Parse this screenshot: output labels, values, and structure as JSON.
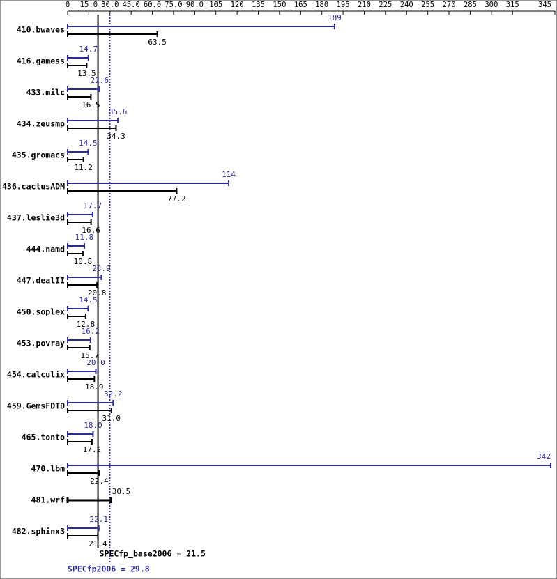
{
  "chart_data": {
    "type": "bar",
    "categories": [
      "410.bwaves",
      "416.gamess",
      "433.milc",
      "434.zeusmp",
      "435.gromacs",
      "436.cactusADM",
      "437.leslie3d",
      "444.namd",
      "447.dealII",
      "450.soplex",
      "453.povray",
      "454.calculix",
      "459.GemsFDTD",
      "465.tonto",
      "470.lbm",
      "481.wrf",
      "482.sphinx3"
    ],
    "series": [
      {
        "name": "SPECfp2006",
        "color": "#2a2a9a",
        "values": [
          189,
          14.7,
          22.6,
          35.6,
          14.5,
          114,
          17.7,
          11.8,
          23.9,
          14.5,
          16.2,
          20.0,
          32.2,
          18.0,
          342,
          null,
          22.1
        ],
        "value_labels": [
          "189",
          "14.7",
          "22.6",
          "35.6",
          "14.5",
          "114",
          "17.7",
          "11.8",
          "23.9",
          "14.5",
          "16.2",
          "20.0",
          "32.2",
          "18.0",
          "342",
          null,
          "22.1"
        ]
      },
      {
        "name": "SPECfp_base2006",
        "color": "#000000",
        "values": [
          63.5,
          13.5,
          16.5,
          34.3,
          11.2,
          77.2,
          16.6,
          10.8,
          20.8,
          12.8,
          15.7,
          18.9,
          31.0,
          17.2,
          22.4,
          30.5,
          21.4
        ],
        "value_labels": [
          "63.5",
          "13.5",
          "16.5",
          "34.3",
          "11.2",
          "77.2",
          "16.6",
          "10.8",
          "20.8",
          "12.8",
          "15.7",
          "18.9",
          "31.0",
          "17.2",
          "22.4",
          "30.5",
          "21.4"
        ]
      }
    ],
    "xlim": [
      0,
      345
    ],
    "xticks": [
      0,
      {
        "value": 15,
        "label": "15.0"
      },
      {
        "value": 30,
        "label": "30.0"
      },
      {
        "value": 45,
        "label": "45.0"
      },
      {
        "value": 60,
        "label": "60.0"
      },
      {
        "value": 75,
        "label": "75.0"
      },
      {
        "value": 90,
        "label": "90.0"
      },
      105,
      120,
      135,
      150,
      165,
      180,
      195,
      210,
      225,
      240,
      255,
      270,
      285,
      300,
      315,
      345
    ],
    "reference_lines": [
      {
        "value": 21.5,
        "label": "SPECfp_base2006 = 21.5",
        "color": "#000000"
      },
      {
        "value": 29.8,
        "label": "SPECfp2006 = 29.8",
        "color": "#2a2a9a"
      }
    ]
  }
}
